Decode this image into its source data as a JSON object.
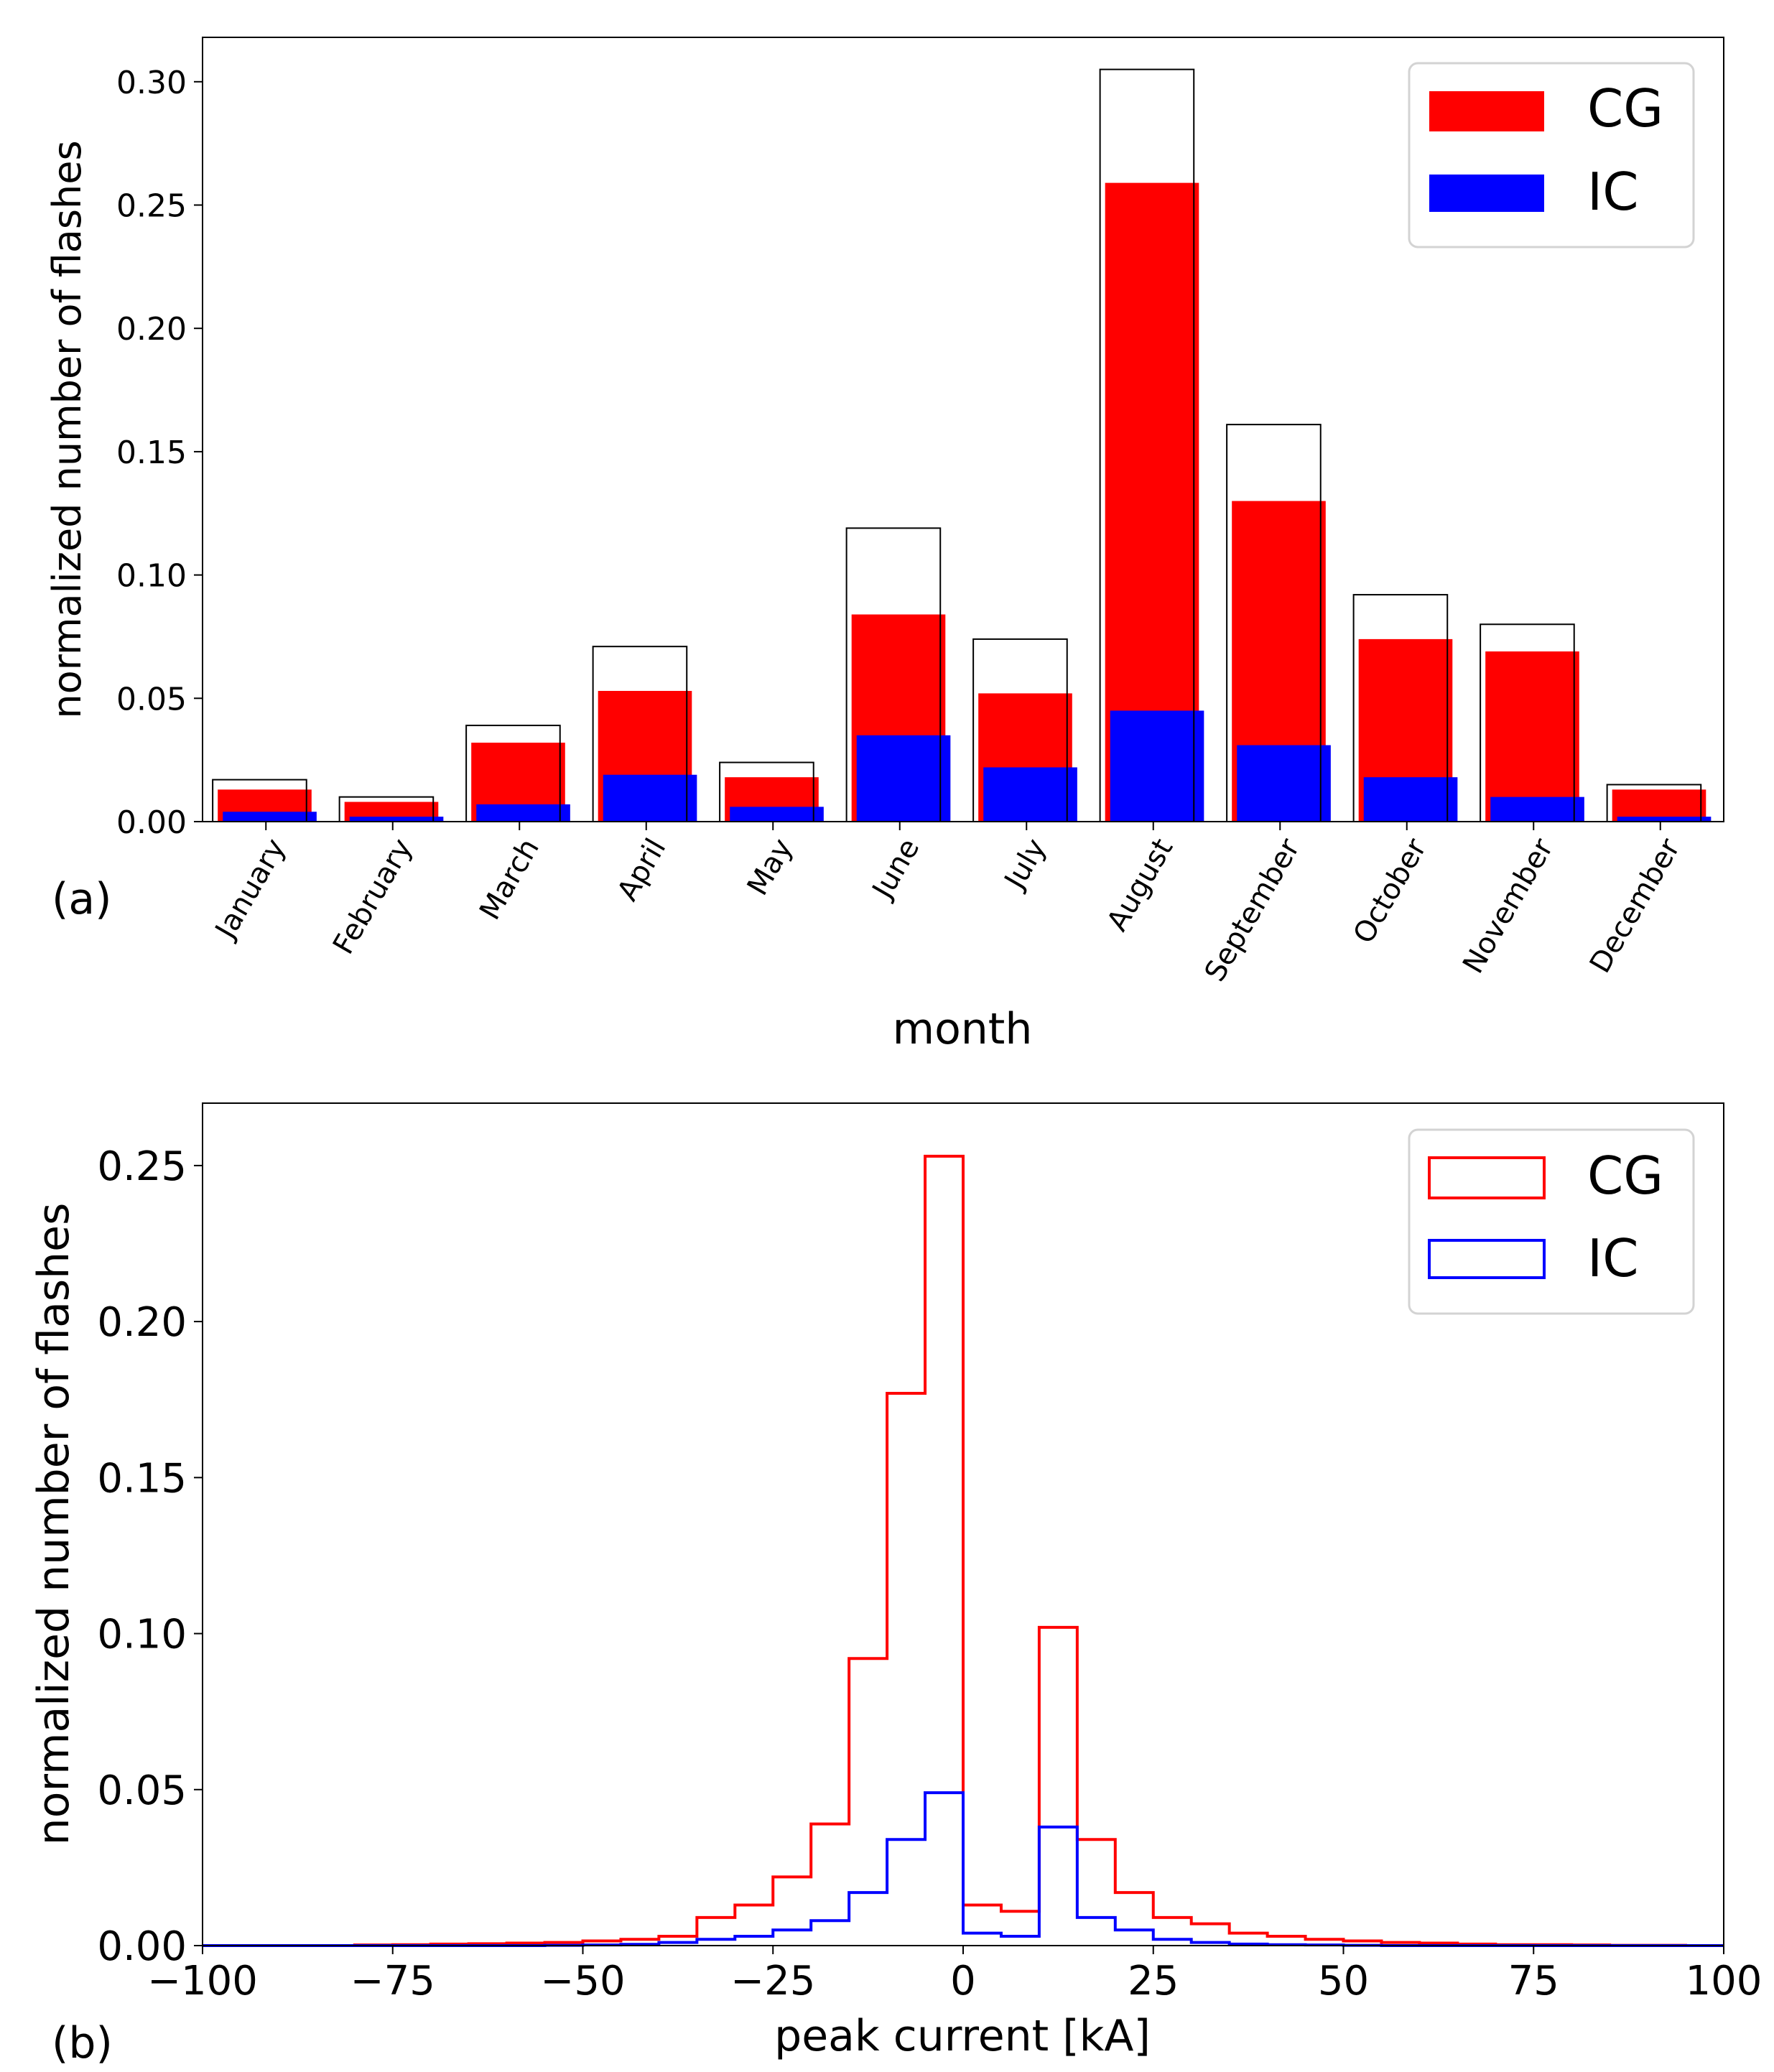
{
  "chart_data": [
    {
      "id": "a",
      "type": "bar",
      "panel_label": "(a)",
      "title": "",
      "xlabel": "month",
      "ylabel": "normalized number of flashes",
      "ylim": [
        0,
        0.318
      ],
      "yticks": [
        0,
        0.05,
        0.1,
        0.15,
        0.2,
        0.25,
        0.3
      ],
      "ytick_labels": [
        "0.00",
        "0.05",
        "0.10",
        "0.15",
        "0.20",
        "0.25",
        "0.30"
      ],
      "categories": [
        "January",
        "February",
        "March",
        "April",
        "May",
        "June",
        "July",
        "August",
        "September",
        "October",
        "November",
        "December"
      ],
      "series": [
        {
          "name": "total",
          "style": "outline",
          "color": "#000000",
          "values": [
            0.017,
            0.01,
            0.039,
            0.071,
            0.024,
            0.119,
            0.074,
            0.305,
            0.161,
            0.092,
            0.08,
            0.015
          ]
        },
        {
          "name": "CG",
          "style": "filled",
          "color": "#ff0000",
          "values": [
            0.013,
            0.008,
            0.032,
            0.053,
            0.018,
            0.084,
            0.052,
            0.259,
            0.13,
            0.074,
            0.069,
            0.013
          ]
        },
        {
          "name": "IC",
          "style": "filled",
          "color": "#0000ff",
          "values": [
            0.004,
            0.002,
            0.007,
            0.019,
            0.006,
            0.035,
            0.022,
            0.045,
            0.031,
            0.018,
            0.01,
            0.002
          ]
        }
      ],
      "legend": {
        "position": "top-right",
        "entries": [
          {
            "label": "CG",
            "color": "#ff0000"
          },
          {
            "label": "IC",
            "color": "#0000ff"
          }
        ]
      }
    },
    {
      "id": "b",
      "type": "step-histogram",
      "panel_label": "(b)",
      "title": "",
      "xlabel": "peak current [kA]",
      "ylabel": "normalized number of flashes",
      "xlim": [
        -100,
        100
      ],
      "ylim": [
        0,
        0.27
      ],
      "xticks": [
        -100,
        -75,
        -50,
        -25,
        0,
        25,
        50,
        75,
        100
      ],
      "xtick_labels": [
        "−100",
        "−75",
        "−50",
        "−25",
        "0",
        "25",
        "50",
        "75",
        "100"
      ],
      "yticks": [
        0,
        0.05,
        0.1,
        0.15,
        0.2,
        0.25
      ],
      "ytick_labels": [
        "0.00",
        "0.05",
        "0.10",
        "0.15",
        "0.20",
        "0.25"
      ],
      "bin_edges": [
        -100,
        -95,
        -90,
        -85,
        -80,
        -75,
        -70,
        -65,
        -60,
        -55,
        -50,
        -45,
        -40,
        -35,
        -30,
        -25,
        -20,
        -15,
        -10,
        -5,
        0,
        5,
        10,
        15,
        20,
        25,
        30,
        35,
        40,
        45,
        50,
        55,
        60,
        65,
        70,
        75,
        80,
        85,
        90,
        95
      ],
      "series": [
        {
          "name": "CG",
          "color": "#ff0000",
          "values": [
            0,
            0,
            0,
            0,
            0.0002,
            0.0003,
            0.0005,
            0.0006,
            0.0008,
            0.001,
            0.0015,
            0.002,
            0.003,
            0.009,
            0.013,
            0.022,
            0.039,
            0.092,
            0.177,
            0.253,
            0.013,
            0.011,
            0.102,
            0.034,
            0.017,
            0.009,
            0.007,
            0.004,
            0.003,
            0.002,
            0.0015,
            0.001,
            0.0008,
            0.0005,
            0.0003,
            0.0003,
            0.0002,
            0.0001,
            0.0001,
            0
          ]
        },
        {
          "name": "IC",
          "color": "#0000ff",
          "values": [
            0,
            0,
            0,
            0,
            0,
            0,
            0,
            0,
            0,
            0.0001,
            0.0002,
            0.0004,
            0.001,
            0.002,
            0.003,
            0.005,
            0.008,
            0.017,
            0.034,
            0.049,
            0.004,
            0.003,
            0.038,
            0.009,
            0.005,
            0.002,
            0.001,
            0.0005,
            0.0003,
            0.0002,
            0.0001,
            0,
            0,
            0,
            0,
            0,
            0,
            0,
            0,
            0
          ]
        }
      ],
      "legend": {
        "position": "top-right",
        "entries": [
          {
            "label": "CG",
            "color": "#ff0000"
          },
          {
            "label": "IC",
            "color": "#0000ff"
          }
        ]
      }
    }
  ]
}
